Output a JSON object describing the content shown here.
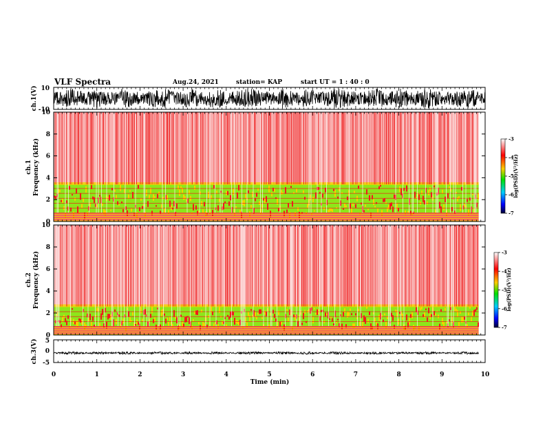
{
  "header": {
    "title": "VLF Spectra",
    "date": "Aug.24, 2021",
    "station": "station= KAP",
    "start_ut": "start  UT =   1 : 40 : 0"
  },
  "colors": {
    "spec_low": "#8ee61a",
    "spec_mid": "#f2d400",
    "spec_high": "#ee1c1c",
    "waveform": "#000000",
    "colorbar_stops": [
      "#ffffff",
      "#ff0000",
      "#ffcc00",
      "#00e000",
      "#00ccff",
      "#0000ff",
      "#000033"
    ]
  },
  "chart_data": [
    {
      "type": "line",
      "name": "ch1-waveform",
      "ylabel": "ch.1(V)",
      "ylim": [
        -10,
        10
      ],
      "yticks": [
        "10",
        "-10"
      ],
      "xlim": [
        0,
        10
      ],
      "envelope": {
        "center": 0,
        "amplitude_min": 6,
        "amplitude_max": 9
      }
    },
    {
      "type": "heatmap",
      "name": "ch1-spectrogram",
      "ylabel_line1": "ch.1",
      "ylabel_line2": "Frequency  (kHz)",
      "ylim": [
        0,
        10
      ],
      "yticks": [
        "0",
        "2",
        "4",
        "6",
        "8",
        "10"
      ],
      "xlim": [
        0,
        9.85
      ],
      "bands_khz": {
        "high_start": 3.4,
        "low_band": [
          0.8,
          3.4
        ]
      },
      "colorbar": {
        "label": "log(PSD)(V²/Hz)",
        "range": [
          -7,
          -3
        ],
        "ticks": [
          "-3",
          "-4",
          "-5",
          "-6",
          "-7"
        ]
      }
    },
    {
      "type": "heatmap",
      "name": "ch2-spectrogram",
      "ylabel_line1": "ch.2",
      "ylabel_line2": "Frequency  (kHz)",
      "ylim": [
        0,
        10
      ],
      "yticks": [
        "0",
        "2",
        "4",
        "6",
        "8",
        "10"
      ],
      "xlim": [
        0,
        9.85
      ],
      "bands_khz": {
        "high_start": 2.6,
        "low_band": [
          0.8,
          2.6
        ]
      },
      "colorbar": {
        "label": "log(PSD)(V²/Hz)",
        "range": [
          -7,
          -3
        ],
        "ticks": [
          "-3",
          "-4",
          "-5",
          "-6",
          "-7"
        ]
      }
    },
    {
      "type": "line",
      "name": "ch3-waveform",
      "ylabel": "ch.3(V)",
      "ylim": [
        -5,
        5
      ],
      "yticks": [
        "5",
        "0",
        "-5"
      ],
      "xlim": [
        0,
        9.85
      ],
      "envelope": {
        "center": -0.8,
        "amplitude_min": 0.3,
        "amplitude_max": 0.6
      }
    }
  ],
  "xaxis": {
    "label": "Time  (min)",
    "range": [
      0,
      10
    ],
    "ticks": [
      "0",
      "1",
      "2",
      "3",
      "4",
      "5",
      "6",
      "7",
      "8",
      "9",
      "10"
    ]
  }
}
